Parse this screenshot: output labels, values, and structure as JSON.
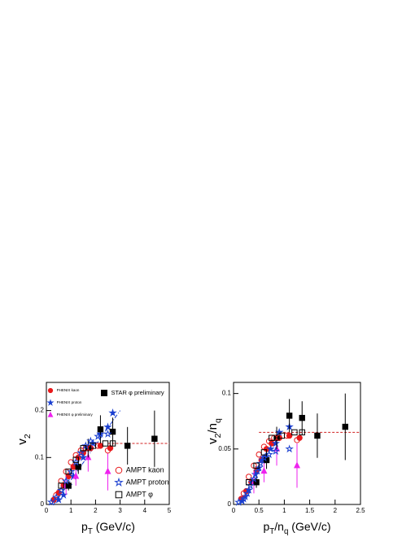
{
  "chart_data": [
    {
      "type": "scatter",
      "y_label": [
        {
          "text": "v"
        },
        {
          "text": "2",
          "sub": true
        }
      ],
      "x_label": [
        {
          "text": "p"
        },
        {
          "text": "T",
          "sub": true
        },
        {
          "text": " (GeV/c)"
        }
      ],
      "xlim": [
        0,
        5
      ],
      "ylim": [
        0,
        0.26
      ],
      "xticks": [
        0,
        1,
        2,
        3,
        4,
        5
      ],
      "yticks": [
        0,
        0.1,
        0.2
      ],
      "fit_lines": [
        {
          "x": [
            0.3,
            3
          ],
          "y": [
            0,
            0.2
          ],
          "color": "#1a3fd0",
          "dash": "5,2,1,2"
        },
        {
          "x": [
            2.5,
            5
          ],
          "y": [
            0.13,
            0.13
          ],
          "color": "#d02020",
          "dash": "3,2"
        }
      ],
      "series": [
        {
          "name": "PHENIX kaon",
          "legend": "upper-left",
          "marker": "circle",
          "filled": true,
          "color": "#e8191b",
          "x": [
            0.3,
            0.5,
            0.7,
            0.9,
            1.1,
            1.3,
            1.5,
            1.8,
            2.2,
            2.6
          ],
          "values": [
            0.01,
            0.025,
            0.04,
            0.06,
            0.08,
            0.1,
            0.11,
            0.12,
            0.125,
            0.12
          ]
        },
        {
          "name": "PHENIX proton",
          "legend": "upper-left",
          "marker": "star",
          "filled": true,
          "color": "#1a3fd0",
          "x": [
            0.5,
            0.7,
            0.9,
            1.1,
            1.3,
            1.5,
            1.7,
            1.9,
            2.2,
            2.5,
            2.7
          ],
          "values": [
            0.01,
            0.02,
            0.04,
            0.06,
            0.08,
            0.1,
            0.12,
            0.13,
            0.15,
            0.165,
            0.195
          ]
        },
        {
          "name": "PHENIX φ preliminary",
          "legend": "upper-left",
          "marker": "triangle",
          "filled": true,
          "color": "#ee22ee",
          "x": [
            0.8,
            1.2,
            1.7,
            2.5
          ],
          "values": [
            0.04,
            0.06,
            0.1,
            0.07
          ],
          "errors": [
            0.02,
            0.02,
            0.03,
            0.04
          ]
        },
        {
          "name": "STAR φ preliminary",
          "legend": "upper-right",
          "marker": "square",
          "filled": true,
          "color": "#000000",
          "x": [
            0.9,
            1.3,
            1.7,
            2.2,
            2.7,
            3.3,
            4.4
          ],
          "values": [
            0.04,
            0.08,
            0.12,
            0.16,
            0.155,
            0.125,
            0.14
          ],
          "errors": [
            0.01,
            0.015,
            0.02,
            0.03,
            0.03,
            0.04,
            0.06
          ]
        },
        {
          "name": "AMPT kaon",
          "legend": "lower-right",
          "marker": "circle",
          "filled": false,
          "color": "#e8191b",
          "x": [
            0.4,
            0.6,
            0.8,
            1.0,
            1.2,
            1.4,
            1.6,
            1.8,
            2.1,
            2.5
          ],
          "values": [
            0.02,
            0.05,
            0.07,
            0.09,
            0.105,
            0.115,
            0.12,
            0.12,
            0.125,
            0.115
          ]
        },
        {
          "name": "AMPT proton",
          "legend": "lower-right",
          "marker": "star",
          "filled": false,
          "color": "#1a3fd0",
          "x": [
            0.2,
            0.4,
            0.6,
            0.8,
            1.0,
            1.2,
            1.4,
            1.6,
            1.8,
            2.1,
            2.5
          ],
          "values": [
            0.005,
            0.015,
            0.03,
            0.05,
            0.07,
            0.09,
            0.11,
            0.125,
            0.135,
            0.145,
            0.15
          ]
        },
        {
          "name": "AMPT φ",
          "legend": "lower-right",
          "marker": "square",
          "filled": false,
          "color": "#000000",
          "x": [
            0.6,
            0.9,
            1.2,
            1.5,
            1.9,
            2.4,
            2.7
          ],
          "values": [
            0.04,
            0.07,
            0.095,
            0.12,
            0.125,
            0.13,
            0.13
          ]
        }
      ]
    },
    {
      "type": "scatter",
      "y_label": [
        {
          "text": "v"
        },
        {
          "text": "2",
          "sub": true
        },
        {
          "text": "/n"
        },
        {
          "text": "q",
          "sub": true
        }
      ],
      "x_label": [
        {
          "text": "p"
        },
        {
          "text": "T",
          "sub": true
        },
        {
          "text": "/n"
        },
        {
          "text": "q",
          "sub": true
        },
        {
          "text": " (GeV/c)"
        }
      ],
      "xlim": [
        0,
        2.5
      ],
      "ylim": [
        0,
        0.11
      ],
      "xticks": [
        0,
        0.5,
        1,
        1.5,
        2,
        2.5
      ],
      "yticks": [
        0,
        0.05,
        0.1
      ],
      "fit_lines": [
        {
          "x": [
            0.5,
            2.5
          ],
          "y": [
            0.065,
            0.065
          ],
          "color": "#d02020",
          "dash": "3,2"
        }
      ],
      "series": [
        {
          "marker": "circle",
          "filled": true,
          "color": "#e8191b",
          "x": [
            0.15,
            0.25,
            0.35,
            0.45,
            0.55,
            0.65,
            0.75,
            0.9,
            1.1,
            1.3
          ],
          "values": [
            0.005,
            0.012,
            0.02,
            0.03,
            0.04,
            0.05,
            0.055,
            0.06,
            0.062,
            0.06
          ]
        },
        {
          "marker": "star",
          "filled": true,
          "color": "#1a3fd0",
          "x": [
            0.17,
            0.23,
            0.3,
            0.37,
            0.43,
            0.5,
            0.57,
            0.63,
            0.73,
            0.83,
            0.9,
            1.1
          ],
          "values": [
            0.003,
            0.007,
            0.013,
            0.02,
            0.027,
            0.033,
            0.04,
            0.043,
            0.05,
            0.055,
            0.065,
            0.07
          ]
        },
        {
          "marker": "triangle",
          "filled": true,
          "color": "#ee22ee",
          "x": [
            0.4,
            0.6,
            0.85,
            1.25
          ],
          "values": [
            0.02,
            0.03,
            0.05,
            0.035
          ],
          "errors": [
            0.01,
            0.01,
            0.015,
            0.02
          ]
        },
        {
          "marker": "square",
          "filled": true,
          "color": "#000000",
          "x": [
            0.45,
            0.65,
            0.85,
            1.1,
            1.35,
            1.65,
            2.2
          ],
          "values": [
            0.02,
            0.04,
            0.06,
            0.08,
            0.078,
            0.062,
            0.07
          ],
          "errors": [
            0.005,
            0.008,
            0.01,
            0.015,
            0.015,
            0.02,
            0.03
          ]
        },
        {
          "marker": "circle",
          "filled": false,
          "color": "#e8191b",
          "x": [
            0.2,
            0.3,
            0.4,
            0.5,
            0.6,
            0.7,
            0.8,
            0.9,
            1.05,
            1.25
          ],
          "values": [
            0.01,
            0.025,
            0.035,
            0.045,
            0.052,
            0.057,
            0.06,
            0.06,
            0.062,
            0.058
          ]
        },
        {
          "marker": "star",
          "filled": false,
          "color": "#1a3fd0",
          "x": [
            0.1,
            0.2,
            0.27,
            0.33,
            0.4,
            0.47,
            0.53,
            0.6,
            0.7,
            0.83,
            1.1
          ],
          "values": [
            0.002,
            0.005,
            0.01,
            0.017,
            0.023,
            0.03,
            0.037,
            0.042,
            0.045,
            0.048,
            0.05
          ]
        },
        {
          "marker": "square",
          "filled": false,
          "color": "#000000",
          "x": [
            0.3,
            0.45,
            0.6,
            0.75,
            0.95,
            1.2,
            1.35
          ],
          "values": [
            0.02,
            0.035,
            0.047,
            0.06,
            0.062,
            0.065,
            0.065
          ]
        }
      ]
    }
  ]
}
